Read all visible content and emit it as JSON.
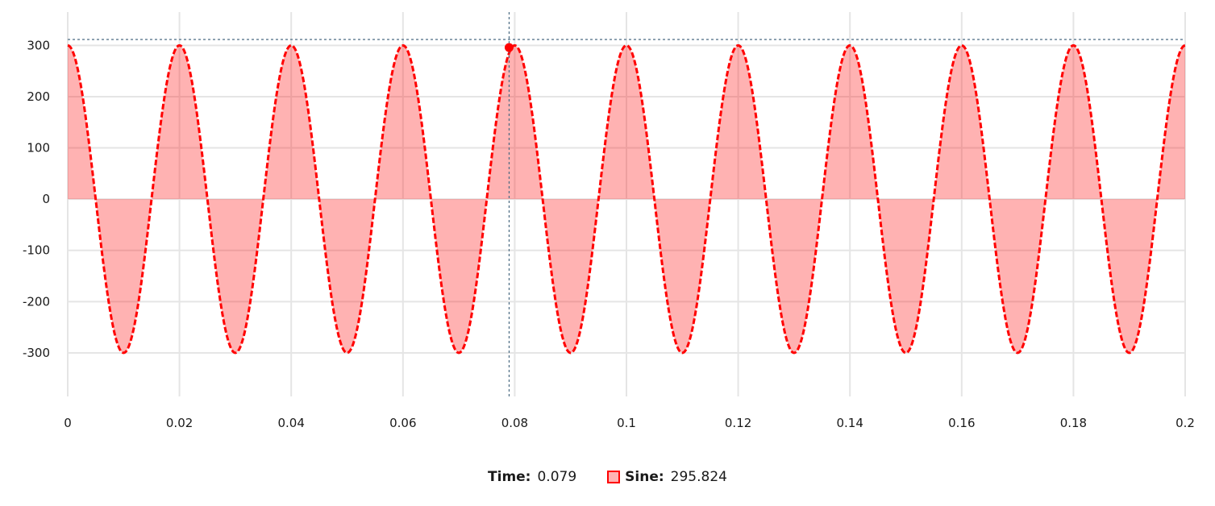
{
  "chart_data": {
    "type": "area",
    "x_ticks": [
      0,
      0.02,
      0.04,
      0.06,
      0.08,
      0.1,
      0.12,
      0.14,
      0.16,
      0.18,
      0.2
    ],
    "y_ticks": [
      300,
      200,
      100,
      0,
      -100,
      -200,
      -300
    ],
    "xlim": [
      0,
      0.2
    ],
    "ylim": [
      -385,
      365
    ],
    "grid": true,
    "legend_position": "bottom",
    "series": [
      {
        "name": "Sine",
        "function": "cosine",
        "amplitude": 300,
        "period": 0.02,
        "x_start": 0,
        "x_end": 0.2,
        "color": "#ff0000",
        "fill_color": "rgba(255,0,0,0.3)",
        "line_style": "dashed"
      }
    ],
    "crosshair": {
      "x": 0.079,
      "y": 295.824,
      "color": "#4a6a82"
    }
  },
  "legend": {
    "time_label": "Time:",
    "time_value": "0.079",
    "series_label": "Sine:",
    "series_value": "295.824"
  }
}
